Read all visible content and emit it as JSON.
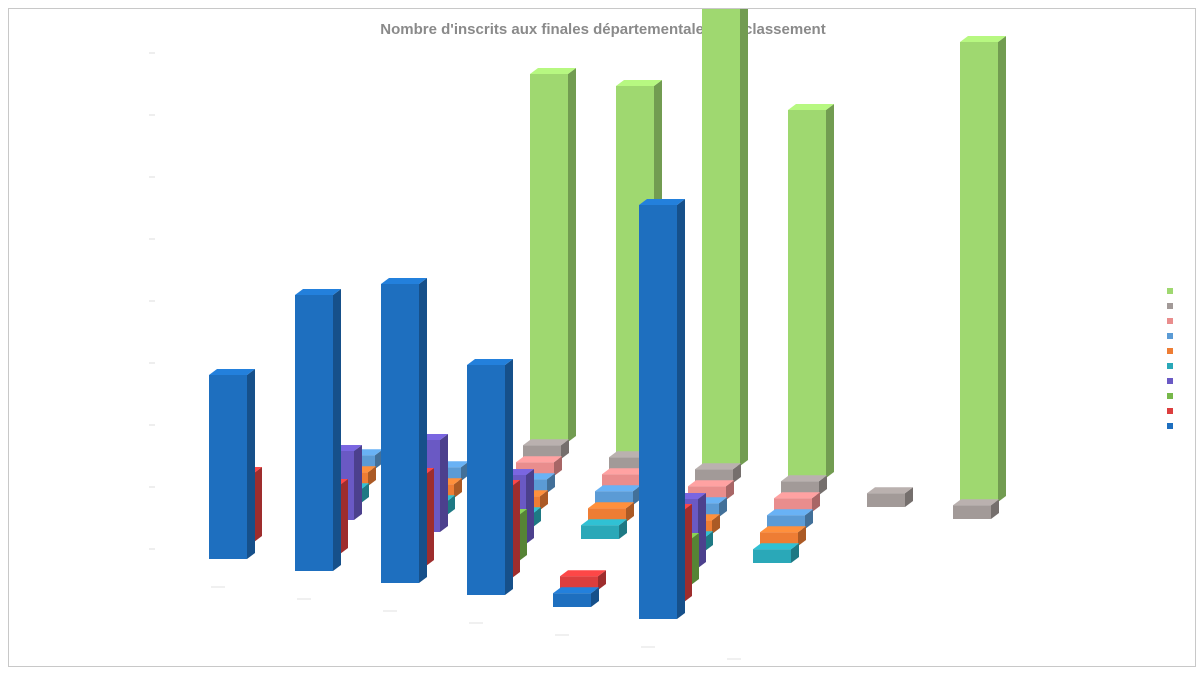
{
  "chart_data": {
    "type": "bar",
    "subtype": "3d-column",
    "title": "Nombre d'inscrits aux finales départementales par classement",
    "categories": [
      "C1",
      "C2",
      "C3",
      "C4",
      "C5",
      "C6",
      "C7",
      "C8",
      "C9"
    ],
    "series": [
      {
        "name": "",
        "color": "#9fd870",
        "values": [
          0,
          0,
          0,
          8,
          8,
          10,
          8,
          0,
          10
        ]
      },
      {
        "name": "",
        "color": "#a29a98",
        "values": [
          0,
          0,
          0,
          0.3,
          0.3,
          0.3,
          0.3,
          0.3,
          0.3
        ]
      },
      {
        "name": "",
        "color": "#e98d8d",
        "values": [
          0,
          0,
          0,
          0.3,
          0.3,
          0.3,
          0.3,
          0,
          0
        ]
      },
      {
        "name": "",
        "color": "#5b9bd5",
        "values": [
          0,
          0.3,
          0.3,
          0.3,
          0.3,
          0.3,
          0.3,
          0,
          0
        ]
      },
      {
        "name": "",
        "color": "#ee7d34",
        "values": [
          0,
          0.3,
          0.3,
          0.3,
          0.3,
          0.3,
          0.3,
          0,
          0
        ]
      },
      {
        "name": "",
        "color": "#2aa8b8",
        "values": [
          0,
          0.3,
          0.3,
          0.3,
          0.3,
          0.3,
          0.3,
          0,
          0
        ]
      },
      {
        "name": "",
        "color": "#6a59c4",
        "values": [
          0,
          1.5,
          2,
          1.5,
          0,
          1.5,
          0,
          0,
          0
        ]
      },
      {
        "name": "",
        "color": "#77b84a",
        "values": [
          0,
          0,
          0,
          1,
          0,
          1,
          0,
          0,
          0
        ]
      },
      {
        "name": "",
        "color": "#dc3e3e",
        "values": [
          1.5,
          1.5,
          2,
          2,
          0.3,
          2,
          0,
          0,
          0
        ]
      },
      {
        "name": "",
        "color": "#1e6fbf",
        "values": [
          4,
          6,
          6.5,
          5,
          0.3,
          9,
          0,
          0,
          0
        ]
      }
    ],
    "depth_axis_labels": [
      "",
      "",
      "",
      "",
      "",
      "",
      "",
      "",
      "",
      ""
    ],
    "ylim": [
      0,
      10
    ],
    "legend_position": "right",
    "grid": false
  }
}
